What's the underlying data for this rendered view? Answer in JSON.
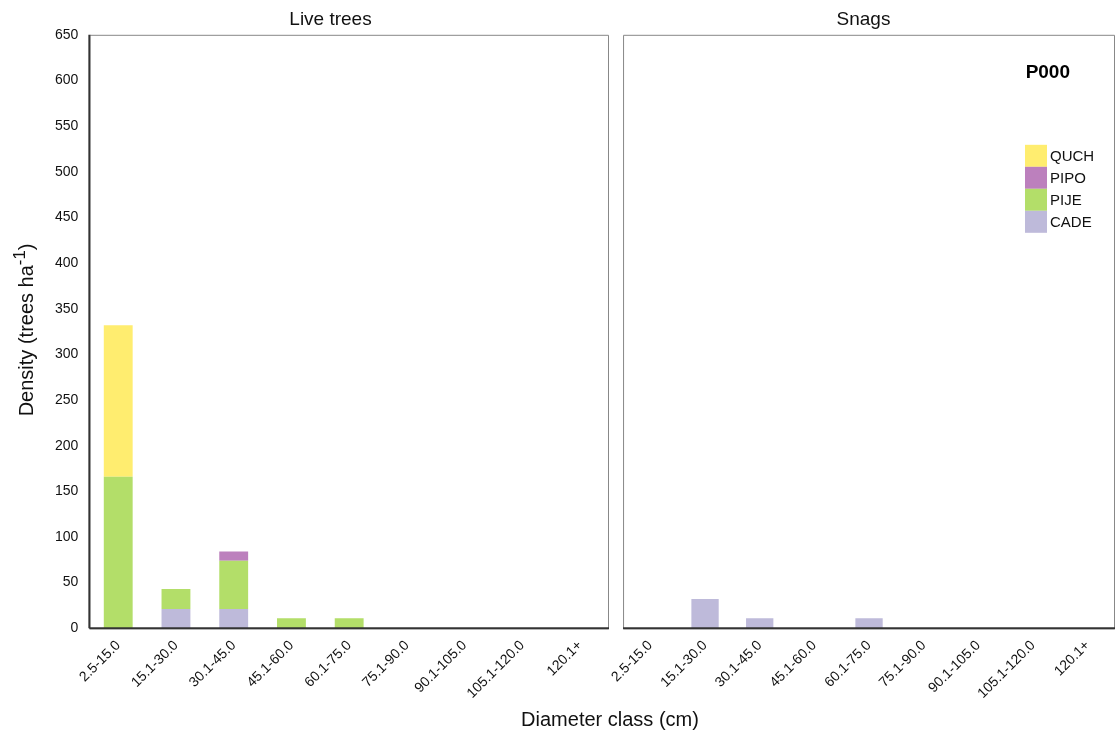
{
  "chart_data": [
    {
      "type": "bar",
      "title": "Live trees",
      "ylabel": "Density (trees ha$^{-1}$)",
      "xlabel": "Diameter class (cm)",
      "stacked": true,
      "categories": [
        "2.5-15.0",
        "15.1-30.0",
        "30.1-45.0",
        "45.1-60.0",
        "60.1-75.0",
        "75.1-90.0",
        "90.1-105.0",
        "105.1-120.0",
        "120.1+"
      ],
      "ylim": [
        0,
        650
      ],
      "yticks": [
        0,
        50,
        100,
        150,
        200,
        250,
        300,
        350,
        400,
        450,
        500,
        550,
        600,
        650
      ],
      "series": [
        {
          "color": "#bebada",
          "values": [
            0,
            21,
            21,
            0,
            0,
            0,
            0,
            0,
            0
          ]
        },
        {
          "color": "#b3de69",
          "values": [
            166,
            22,
            53,
            11,
            11,
            0,
            0,
            0,
            0
          ]
        },
        {
          "color": "#bc80bd",
          "values": [
            0,
            0,
            10,
            0,
            0,
            0,
            0,
            0,
            0
          ]
        },
        {
          "color": "#ffed6f",
          "values": [
            166,
            0,
            0,
            0,
            0,
            0,
            0,
            0,
            0
          ]
        }
      ]
    },
    {
      "type": "bar",
      "title": "Snags",
      "stacked": true,
      "tick_labels": "x",
      "legend": "top right",
      "annotations": [
        "P000"
      ],
      "categories": [
        "2.5-15.0",
        "15.1-30.0",
        "30.1-45.0",
        "45.1-60.0",
        "60.1-75.0",
        "75.1-90.0",
        "90.1-105.0",
        "105.1-120.0",
        "120.1+"
      ],
      "ylim": [
        0,
        650
      ],
      "yticks": [
        0,
        50,
        100,
        150,
        200,
        250,
        300,
        350,
        400,
        450,
        500,
        550,
        600,
        650
      ],
      "series": [
        {
          "name": "CADE",
          "color": "#bebada",
          "values": [
            0,
            32,
            11,
            0,
            11,
            0,
            0,
            0,
            0
          ]
        },
        {
          "name": "PIJE",
          "color": "#b3de69",
          "values": [
            0,
            0,
            0,
            0,
            0,
            0,
            0,
            0,
            0
          ]
        },
        {
          "name": "PIPO",
          "color": "#bc80bd",
          "values": [
            0,
            0,
            0,
            0,
            0,
            0,
            0,
            0,
            0
          ]
        },
        {
          "name": "QUCH",
          "color": "#ffed6f",
          "values": [
            0,
            0,
            0,
            0,
            0,
            0,
            0,
            0,
            0
          ]
        }
      ]
    }
  ]
}
